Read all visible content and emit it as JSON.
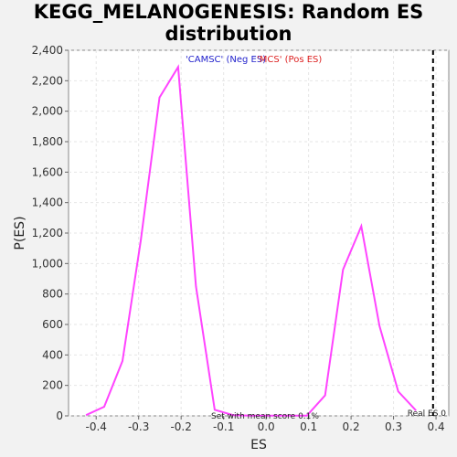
{
  "chart_data": {
    "type": "line",
    "title_lines": [
      "KEGG_MELANOGENESIS: Random ES",
      "distribution"
    ],
    "xlabel": "ES",
    "ylabel": "P(ES)",
    "xlim": [
      -0.465,
      0.43
    ],
    "ylim": [
      0,
      2400
    ],
    "x_ticks": [
      {
        "v": -0.4,
        "label": "-0.4"
      },
      {
        "v": -0.3,
        "label": "-0.3"
      },
      {
        "v": -0.2,
        "label": "-0.2"
      },
      {
        "v": -0.1,
        "label": "-0.1"
      },
      {
        "v": 0.0,
        "label": "0.0"
      },
      {
        "v": 0.1,
        "label": "0.1"
      },
      {
        "v": 0.2,
        "label": "0.2"
      },
      {
        "v": 0.3,
        "label": "0.3"
      },
      {
        "v": 0.4,
        "label": "0.4"
      }
    ],
    "y_ticks": [
      {
        "v": 0,
        "label": "0"
      },
      {
        "v": 200,
        "label": "200"
      },
      {
        "v": 400,
        "label": "400"
      },
      {
        "v": 600,
        "label": "600"
      },
      {
        "v": 800,
        "label": "800"
      },
      {
        "v": 1000,
        "label": "1,000"
      },
      {
        "v": 1200,
        "label": "1,200"
      },
      {
        "v": 1400,
        "label": "1,400"
      },
      {
        "v": 1600,
        "label": "1,600"
      },
      {
        "v": 1800,
        "label": "1,800"
      },
      {
        "v": 2000,
        "label": "2,000"
      },
      {
        "v": 2200,
        "label": "2,200"
      },
      {
        "v": 2400,
        "label": "2,400"
      }
    ],
    "grid": true,
    "series": [
      {
        "color": "#ff44ff",
        "x": [
          -0.424,
          -0.381,
          -0.338,
          -0.295,
          -0.251,
          -0.207,
          -0.165,
          -0.121,
          -0.078,
          -0.035,
          0.009,
          0.052,
          0.096,
          0.139,
          0.181,
          0.224,
          0.267,
          0.311,
          0.353
        ],
        "y": [
          5,
          60,
          360,
          1150,
          2090,
          2290,
          850,
          40,
          5,
          2,
          1,
          2,
          2,
          135,
          960,
          1245,
          590,
          160,
          35
        ]
      }
    ],
    "legend": {
      "placement": "top-center",
      "entries": [
        {
          "text": "'CAMSC' (Neg ES)",
          "color": "#2222cc"
        },
        {
          "text": "'MCS' (Pos ES)",
          "color": "#dd2222"
        }
      ]
    },
    "reference_line": {
      "x": 0.393,
      "label": "Real ES 0",
      "style": "dashed",
      "color": "#000000"
    },
    "annotation": {
      "text": "Set with mean score 0.1%",
      "x": 0.0
    }
  }
}
